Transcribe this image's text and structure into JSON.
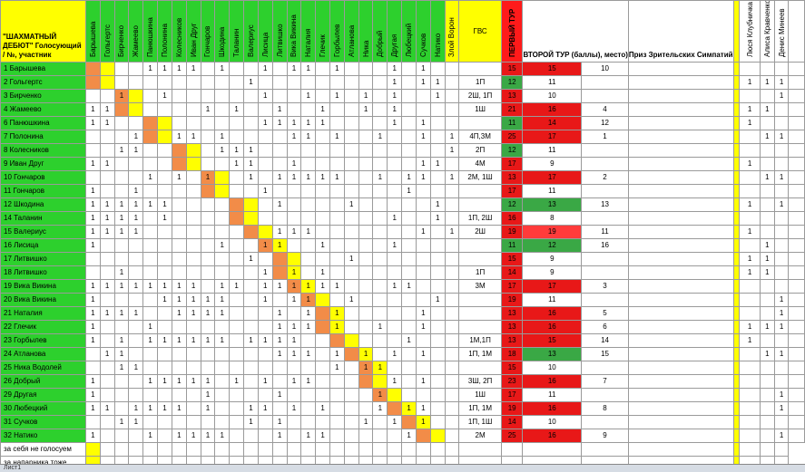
{
  "title": "\"ШАХМАТНЫЙ ДЕБЮТ\" Голосующий / №, участник",
  "columns_voters": [
    "Барышева",
    "Гольгертс",
    "Бирченко",
    "Жамеево",
    "Панюшкина",
    "Полонина",
    "Колесников",
    "Иван Друг",
    "Гончаров",
    "Шкодина",
    "Таланин",
    "Валериус",
    "Лисица",
    "Литвишко",
    "Вика Викина",
    "Наталия",
    "Глечик",
    "Горбылев",
    "Атланова",
    "Ника",
    "Добрый",
    "Другая",
    "Любецкий",
    "Сучков",
    "Натико",
    "Злой Ворон"
  ],
  "col_gvs": "ГВС",
  "col_tour1": "ПЕРВЫЙ ТУР",
  "col_tour2": "ВТОРОЙ ТУР (баллы), место)",
  "col_prize": "Приз Зрительских Симпатий",
  "extra_voters": [
    "Люся Клубничка",
    "Алиса Кравченко",
    "Денис Минеев"
  ],
  "rows": [
    {
      "name": "1 Барышева",
      "marks": "....1111.1..1.11.1...1.1..",
      "gvs": "",
      "t1": "15",
      "t2": "15",
      "t2c": "t2",
      "place": "10",
      "ex": [
        "",
        "",
        ""
      ]
    },
    {
      "name": "2 Гольгертс",
      "marks": "...........1.........1.11.",
      "gvs": "1П",
      "t1": "12",
      "t2": "11",
      "t2c": "",
      "place": "",
      "ex": [
        "1",
        "1",
        "1"
      ]
    },
    {
      "name": "3 Бирченко",
      "marks": "..1..1......1..1.1.1.1..1.",
      "gvs": "2Ш, 1П",
      "t1": "13",
      "t2": "10",
      "t2c": "",
      "place": "",
      "ex": [
        "",
        "",
        "1"
      ]
    },
    {
      "name": "4 Жамеево",
      "marks": "11......1.1..1..1..1.1....",
      "gvs": "1Ш",
      "t1": "21",
      "t2": "16",
      "t2c": "t2",
      "place": "4",
      "ex": [
        "1",
        "1",
        ""
      ]
    },
    {
      "name": "6 Панюшкина",
      "marks": "11..........11111....1.1..",
      "gvs": "",
      "t1": "11",
      "t2": "14",
      "t2c": "t2",
      "place": "12",
      "ex": [
        "1",
        "",
        ""
      ]
    },
    {
      "name": "7 Полонина",
      "marks": "...1..11.1....11.1..1..1.1",
      "gvs": "4П,3М",
      "t1": "25",
      "t2": "17",
      "t2c": "t2",
      "place": "1",
      "ex": [
        "",
        "1",
        "1"
      ]
    },
    {
      "name": "8 Колесников",
      "marks": "..11.....111.............1",
      "gvs": "2П",
      "t1": "12",
      "t2": "11",
      "t2c": "",
      "place": "",
      "ex": [
        "",
        "",
        ""
      ]
    },
    {
      "name": "9 Иван Друг",
      "marks": "11........11..1........11.",
      "gvs": "4М",
      "t1": "17",
      "t2": "9",
      "t2c": "",
      "place": "",
      "ex": [
        "1",
        "",
        ""
      ]
    },
    {
      "name": "10 Гончаров",
      "marks": "....1.1.1..1.11111..1.11.1",
      "gvs": "2М, 1Ш",
      "t1": "13",
      "t2": "17",
      "t2c": "t2",
      "place": "2",
      "ex": [
        "",
        "1",
        "1"
      ]
    },
    {
      "name": "11 Гончаров",
      "marks": "1..1........1.........1...",
      "gvs": "",
      "t1": "17",
      "t2": "11",
      "t2c": "",
      "place": "",
      "ex": [
        "",
        "",
        ""
      ]
    },
    {
      "name": "12 Шкодина",
      "marks": "111111.......1....1.....1.",
      "gvs": "",
      "t1": "12",
      "t2": "13",
      "t2c": "t2g",
      "place": "13",
      "ex": [
        "1",
        "",
        "1"
      ]
    },
    {
      "name": "14 Таланин",
      "marks": "1111.1...............1..1.",
      "gvs": "1П, 2Ш",
      "t1": "16",
      "t2": "8",
      "t2c": "",
      "place": "",
      "ex": [
        "",
        "",
        ""
      ]
    },
    {
      "name": "15 Валериус",
      "marks": "1111.........111.......1.1",
      "gvs": "2Ш",
      "t1": "19",
      "t2": "19",
      "t2c": "t2o",
      "place": "11",
      "ex": [
        "1",
        "",
        ""
      ]
    },
    {
      "name": "16 Лисица",
      "marks": "1........1..11..1....1....",
      "gvs": "",
      "t1": "11",
      "t2": "12",
      "t2c": "t2g",
      "place": "16",
      "ex": [
        "",
        "1",
        ""
      ]
    },
    {
      "name": "17 Литвишко",
      "marks": "...........1......1.......",
      "gvs": "",
      "t1": "15",
      "t2": "9",
      "t2c": "",
      "place": "",
      "ex": [
        "1",
        "1",
        ""
      ]
    },
    {
      "name": "18 Литвишко",
      "marks": "..1.........1.1.1.........",
      "gvs": "1П",
      "t1": "14",
      "t2": "9",
      "t2c": "",
      "place": "",
      "ex": [
        "1",
        "1",
        ""
      ]
    },
    {
      "name": "19 Вика Викина",
      "marks": "11111111.11.111111...11...",
      "gvs": "3М",
      "t1": "17",
      "t2": "17",
      "t2c": "t2",
      "place": "3",
      "ex": [
        "",
        "",
        ""
      ]
    },
    {
      "name": "20 Вика Викина",
      "marks": "1....11111..1.11..1.....1.",
      "gvs": "",
      "t1": "19",
      "t2": "11",
      "t2c": "",
      "place": "",
      "ex": [
        "",
        "",
        "1"
      ]
    },
    {
      "name": "21 Наталия",
      "marks": "1111..1111...1.1.1.....1..",
      "gvs": "",
      "t1": "13",
      "t2": "16",
      "t2c": "t2",
      "place": "5",
      "ex": [
        "",
        "",
        "1"
      ]
    },
    {
      "name": "22 Глечик",
      "marks": "1...1........111.1..1..1..",
      "gvs": "",
      "t1": "13",
      "t2": "16",
      "t2c": "t2",
      "place": "6",
      "ex": [
        "1",
        "1",
        "1"
      ]
    },
    {
      "name": "23 Горбылев",
      "marks": "1.1.111111.1111.......1...",
      "gvs": "1М,1П",
      "t1": "13",
      "t2": "15",
      "t2c": "t2",
      "place": "14",
      "ex": [
        "1",
        "",
        ""
      ]
    },
    {
      "name": "24 Атланова",
      "marks": ".11..........111.1.1.1.1..",
      "gvs": "1П, 1М",
      "t1": "18",
      "t2": "13",
      "t2c": "t2g",
      "place": "15",
      "ex": [
        "",
        "1",
        "1"
      ]
    },
    {
      "name": "25 Ника Водолей",
      "marks": "..11.............1.11.....",
      "gvs": "",
      "t1": "15",
      "t2": "10",
      "t2c": "",
      "place": "",
      "ex": [
        "",
        "",
        ""
      ]
    },
    {
      "name": "26 Добрый",
      "marks": "1...11111.1.1.11.....1.1..",
      "gvs": "3Ш, 2П",
      "t1": "23",
      "t2": "16",
      "t2c": "t2",
      "place": "7",
      "ex": [
        "",
        "",
        ""
      ]
    },
    {
      "name": "29 Другая",
      "marks": "1.......1....1......1.....",
      "gvs": "1Ш",
      "t1": "17",
      "t2": "11",
      "t2c": "",
      "place": "",
      "ex": [
        "",
        "",
        "1"
      ]
    },
    {
      "name": "30 Любецкий",
      "marks": "11.1111.1..11.1.1...1.11..",
      "gvs": "1П, 1М",
      "t1": "19",
      "t2": "16",
      "t2c": "t2",
      "place": "8",
      "ex": [
        "",
        "",
        "1"
      ]
    },
    {
      "name": "31 Сучков",
      "marks": "..11.......1.1.....1.1.1..",
      "gvs": "1П, 1Ш",
      "t1": "14",
      "t2": "10",
      "t2c": "",
      "place": "",
      "ex": [
        "",
        "",
        ""
      ]
    },
    {
      "name": "32 Натико",
      "marks": "1...1.1111...1.11.....1...",
      "gvs": "2М",
      "t1": "25",
      "t2": "16",
      "t2c": "t2",
      "place": "9",
      "ex": [
        "",
        "",
        "1"
      ]
    }
  ],
  "footer": [
    "за себя не голосуем",
    "за напарника тоже"
  ],
  "sheet_tab": "Лист1"
}
